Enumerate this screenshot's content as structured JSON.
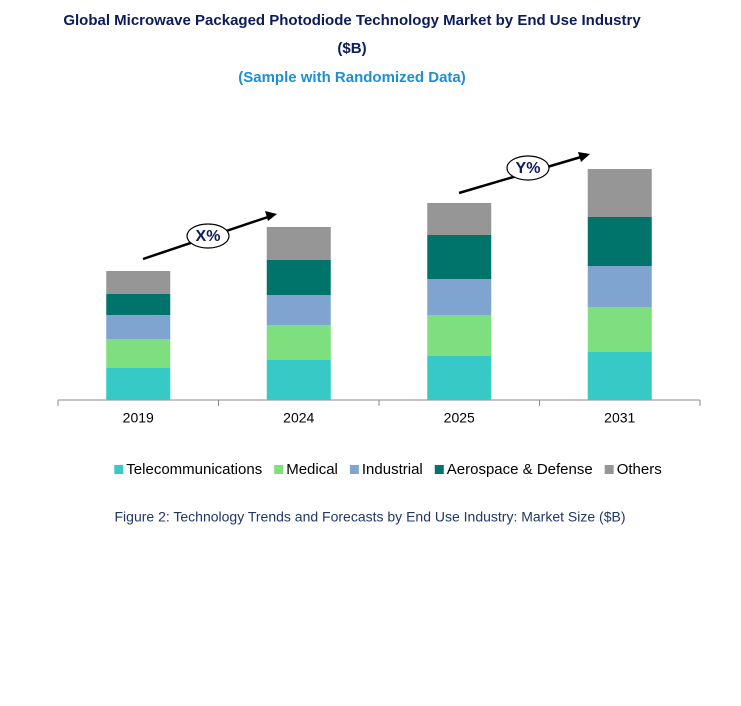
{
  "chart_data": {
    "type": "stacked_bar",
    "title_lines": [
      "Global Microwave Packaged Photodiode Technology Market by End Use Industry",
      "($B)"
    ],
    "subtitle": "(Sample with Randomized Data)",
    "categories": [
      "2019",
      "2024",
      "2025",
      "2031"
    ],
    "series": [
      {
        "name": "Telecommunications",
        "color": "#36c9c6",
        "values": [
          3.2,
          4.0,
          4.4,
          4.8
        ]
      },
      {
        "name": "Medical",
        "color": "#7ddf7d",
        "values": [
          2.9,
          3.5,
          4.1,
          4.5
        ]
      },
      {
        "name": "Industrial",
        "color": "#7fa4cf",
        "values": [
          2.4,
          3.0,
          3.6,
          4.1
        ]
      },
      {
        "name": "Aerospace & Defense",
        "color": "#00736b",
        "values": [
          2.1,
          3.5,
          4.4,
          4.9
        ]
      },
      {
        "name": "Others",
        "color": "#969696",
        "values": [
          2.3,
          3.3,
          3.2,
          4.8
        ]
      }
    ],
    "annotations": [
      "X%",
      "Y%"
    ],
    "caption": "Figure 2: Technology  Trends  and Forecasts by  End Use Industry:  Market Size ($B)"
  }
}
